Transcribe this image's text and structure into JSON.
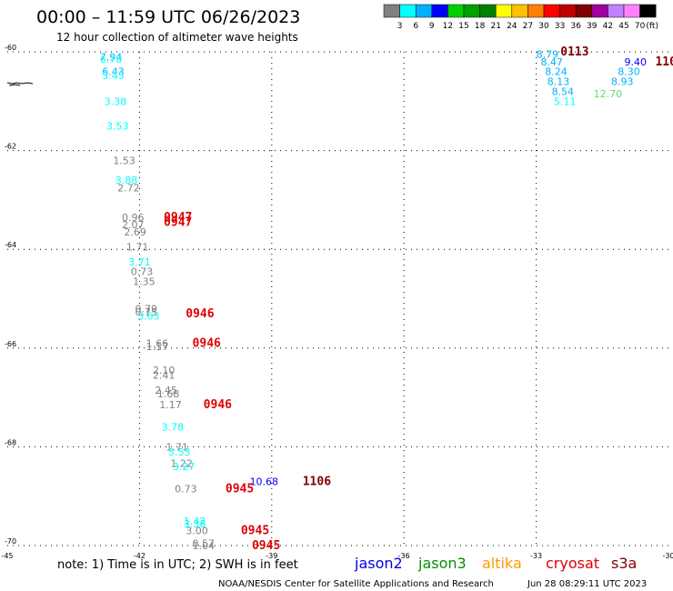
{
  "header": {
    "title": "00:00 – 11:59 UTC 06/26/2023",
    "subtitle": "12 hour collection of altimeter wave heights"
  },
  "colorbar": {
    "unit": "(ft)",
    "labels": [
      "3",
      "6",
      "9",
      "12",
      "15",
      "18",
      "21",
      "24",
      "27",
      "30",
      "33",
      "36",
      "39",
      "42",
      "45",
      "70"
    ],
    "colors": [
      "#808080",
      "#00ffff",
      "#00b0ff",
      "#0000ff",
      "#00d000",
      "#00a000",
      "#008000",
      "#ffff00",
      "#ffc000",
      "#ff8000",
      "#ff0000",
      "#c00000",
      "#800000",
      "#a000a0",
      "#c080ff",
      "#ff80ff",
      "#000000"
    ]
  },
  "chart_data": {
    "type": "scatter",
    "xlim": [
      -45,
      -30
    ],
    "ylim": [
      -70,
      -60
    ],
    "x_ticks": [
      -45,
      -42,
      -39,
      -36,
      -33,
      -30
    ],
    "y_ticks": [
      -60,
      -62,
      -64,
      -66,
      -68,
      -70
    ],
    "grid": true,
    "points": [
      {
        "x": -42.9,
        "y": -60.1,
        "label": "7.94",
        "color": "#00b0ff"
      },
      {
        "x": -42.9,
        "y": -60.15,
        "label": "6.78",
        "color": "#00ffff"
      },
      {
        "x": -42.85,
        "y": -60.4,
        "label": "6.43",
        "color": "#00b0ff"
      },
      {
        "x": -42.85,
        "y": -60.48,
        "label": "5.45",
        "color": "#00ffff"
      },
      {
        "x": -42.8,
        "y": -61.0,
        "label": "3.38",
        "color": "#00ffff"
      },
      {
        "x": -42.75,
        "y": -61.5,
        "label": "3.53",
        "color": "#00ffff"
      },
      {
        "x": -42.6,
        "y": -62.2,
        "label": "1.53",
        "color": "#808080"
      },
      {
        "x": -42.55,
        "y": -62.6,
        "label": "3.88",
        "color": "#00ffff"
      },
      {
        "x": -42.5,
        "y": -62.75,
        "label": "2.72",
        "color": "#808080"
      },
      {
        "x": -42.4,
        "y": -63.35,
        "label": "0.96",
        "color": "#808080"
      },
      {
        "x": -42.4,
        "y": -63.5,
        "label": "2.07",
        "color": "#808080"
      },
      {
        "x": -42.35,
        "y": -63.65,
        "label": "2.69",
        "color": "#808080"
      },
      {
        "x": -42.3,
        "y": -63.95,
        "label": "1.71",
        "color": "#808080"
      },
      {
        "x": -42.25,
        "y": -64.25,
        "label": "3.71",
        "color": "#00ffff"
      },
      {
        "x": -42.2,
        "y": -64.45,
        "label": "0.73",
        "color": "#808080"
      },
      {
        "x": -42.15,
        "y": -64.65,
        "label": "1.35",
        "color": "#808080"
      },
      {
        "x": -42.1,
        "y": -65.2,
        "label": "0.79",
        "color": "#808080"
      },
      {
        "x": -42.1,
        "y": -65.27,
        "label": "0.75",
        "color": "#808080"
      },
      {
        "x": -42.05,
        "y": -65.35,
        "label": "3.63",
        "color": "#00ffff"
      },
      {
        "x": -41.85,
        "y": -65.9,
        "label": "1.66",
        "color": "#808080"
      },
      {
        "x": -41.85,
        "y": -65.97,
        "label": "1.17",
        "color": "#808080"
      },
      {
        "x": -41.7,
        "y": -66.45,
        "label": "2.10",
        "color": "#808080"
      },
      {
        "x": -41.7,
        "y": -66.55,
        "label": "2.41",
        "color": "#808080"
      },
      {
        "x": -41.65,
        "y": -66.85,
        "label": "2.45",
        "color": "#808080"
      },
      {
        "x": -41.6,
        "y": -66.92,
        "label": "1.68",
        "color": "#808080"
      },
      {
        "x": -41.55,
        "y": -67.15,
        "label": "1.17",
        "color": "#808080"
      },
      {
        "x": -41.5,
        "y": -67.6,
        "label": "3.78",
        "color": "#00ffff"
      },
      {
        "x": -41.4,
        "y": -68.0,
        "label": "1.71",
        "color": "#808080"
      },
      {
        "x": -41.35,
        "y": -68.1,
        "label": "3.53",
        "color": "#00ffff"
      },
      {
        "x": -41.3,
        "y": -68.33,
        "label": "1.22",
        "color": "#808080"
      },
      {
        "x": -41.25,
        "y": -68.4,
        "label": "3.27",
        "color": "#00ffff"
      },
      {
        "x": -41.2,
        "y": -68.85,
        "label": "0.73",
        "color": "#808080"
      },
      {
        "x": -41.0,
        "y": -69.5,
        "label": "1.42",
        "color": "#00ffff"
      },
      {
        "x": -41.0,
        "y": -69.56,
        "label": "3.38",
        "color": "#00ffff"
      },
      {
        "x": -40.95,
        "y": -69.7,
        "label": "3.00",
        "color": "#808080"
      },
      {
        "x": -40.8,
        "y": -69.95,
        "label": "0.57",
        "color": "#808080"
      },
      {
        "x": -40.8,
        "y": -70.0,
        "label": "1.04",
        "color": "#808080"
      },
      {
        "x": -39.5,
        "y": -68.7,
        "label": "10.68",
        "color": "#0000ff"
      },
      {
        "x": -33.0,
        "y": -60.05,
        "label": "8.79",
        "color": "#00b0ff"
      },
      {
        "x": -32.9,
        "y": -60.2,
        "label": "8.47",
        "color": "#00b0ff"
      },
      {
        "x": -32.8,
        "y": -60.4,
        "label": "8.24",
        "color": "#00b0ff"
      },
      {
        "x": -32.75,
        "y": -60.6,
        "label": "8.13",
        "color": "#00b0ff"
      },
      {
        "x": -32.65,
        "y": -60.8,
        "label": "8.54",
        "color": "#00b0ff"
      },
      {
        "x": -32.6,
        "y": -61.0,
        "label": "5.11",
        "color": "#00ffff"
      },
      {
        "x": -31.0,
        "y": -60.2,
        "label": "9.40",
        "color": "#0000ff"
      },
      {
        "x": -31.15,
        "y": -60.4,
        "label": "8.30",
        "color": "#00b0ff"
      },
      {
        "x": -31.3,
        "y": -60.6,
        "label": "8.93",
        "color": "#00b0ff"
      },
      {
        "x": -31.7,
        "y": -60.85,
        "label": "12.70",
        "color": "#60e060"
      }
    ],
    "time_labels": [
      {
        "x": -41.45,
        "y": -63.35,
        "label": "0947",
        "color": "#e00000"
      },
      {
        "x": -41.45,
        "y": -63.45,
        "label": "0947",
        "color": "#e00000"
      },
      {
        "x": -40.95,
        "y": -65.3,
        "label": "0946",
        "color": "#e00000"
      },
      {
        "x": -40.8,
        "y": -65.9,
        "label": "0946",
        "color": "#e00000"
      },
      {
        "x": -40.55,
        "y": -67.15,
        "label": "0946",
        "color": "#e00000"
      },
      {
        "x": -40.05,
        "y": -68.85,
        "label": "0945",
        "color": "#e00000"
      },
      {
        "x": -39.7,
        "y": -69.7,
        "label": "0945",
        "color": "#e00000"
      },
      {
        "x": -39.45,
        "y": -70.0,
        "label": "0945",
        "color": "#e00000"
      },
      {
        "x": -38.3,
        "y": -68.7,
        "label": "1106",
        "color": "#800000"
      },
      {
        "x": -32.45,
        "y": -60.0,
        "label": "0113",
        "color": "#800000"
      },
      {
        "x": -30.3,
        "y": -60.2,
        "label": "110",
        "color": "#800000"
      }
    ]
  },
  "footer": {
    "note": "note: 1) Time is in UTC; 2) SWH is in feet",
    "legend": [
      {
        "label": "jason2",
        "color": "#0000e0"
      },
      {
        "label": "jason3",
        "color": "#009000"
      },
      {
        "label": "altika",
        "color": "#ff9900"
      },
      {
        "label": "cryosat",
        "color": "#e00000"
      },
      {
        "label": "s3a",
        "color": "#800000"
      }
    ],
    "credit": "NOAA/NESDIS Center for Satellite Applications and Research",
    "timestamp": "Jun 28 08:29:11 UTC 2023"
  }
}
